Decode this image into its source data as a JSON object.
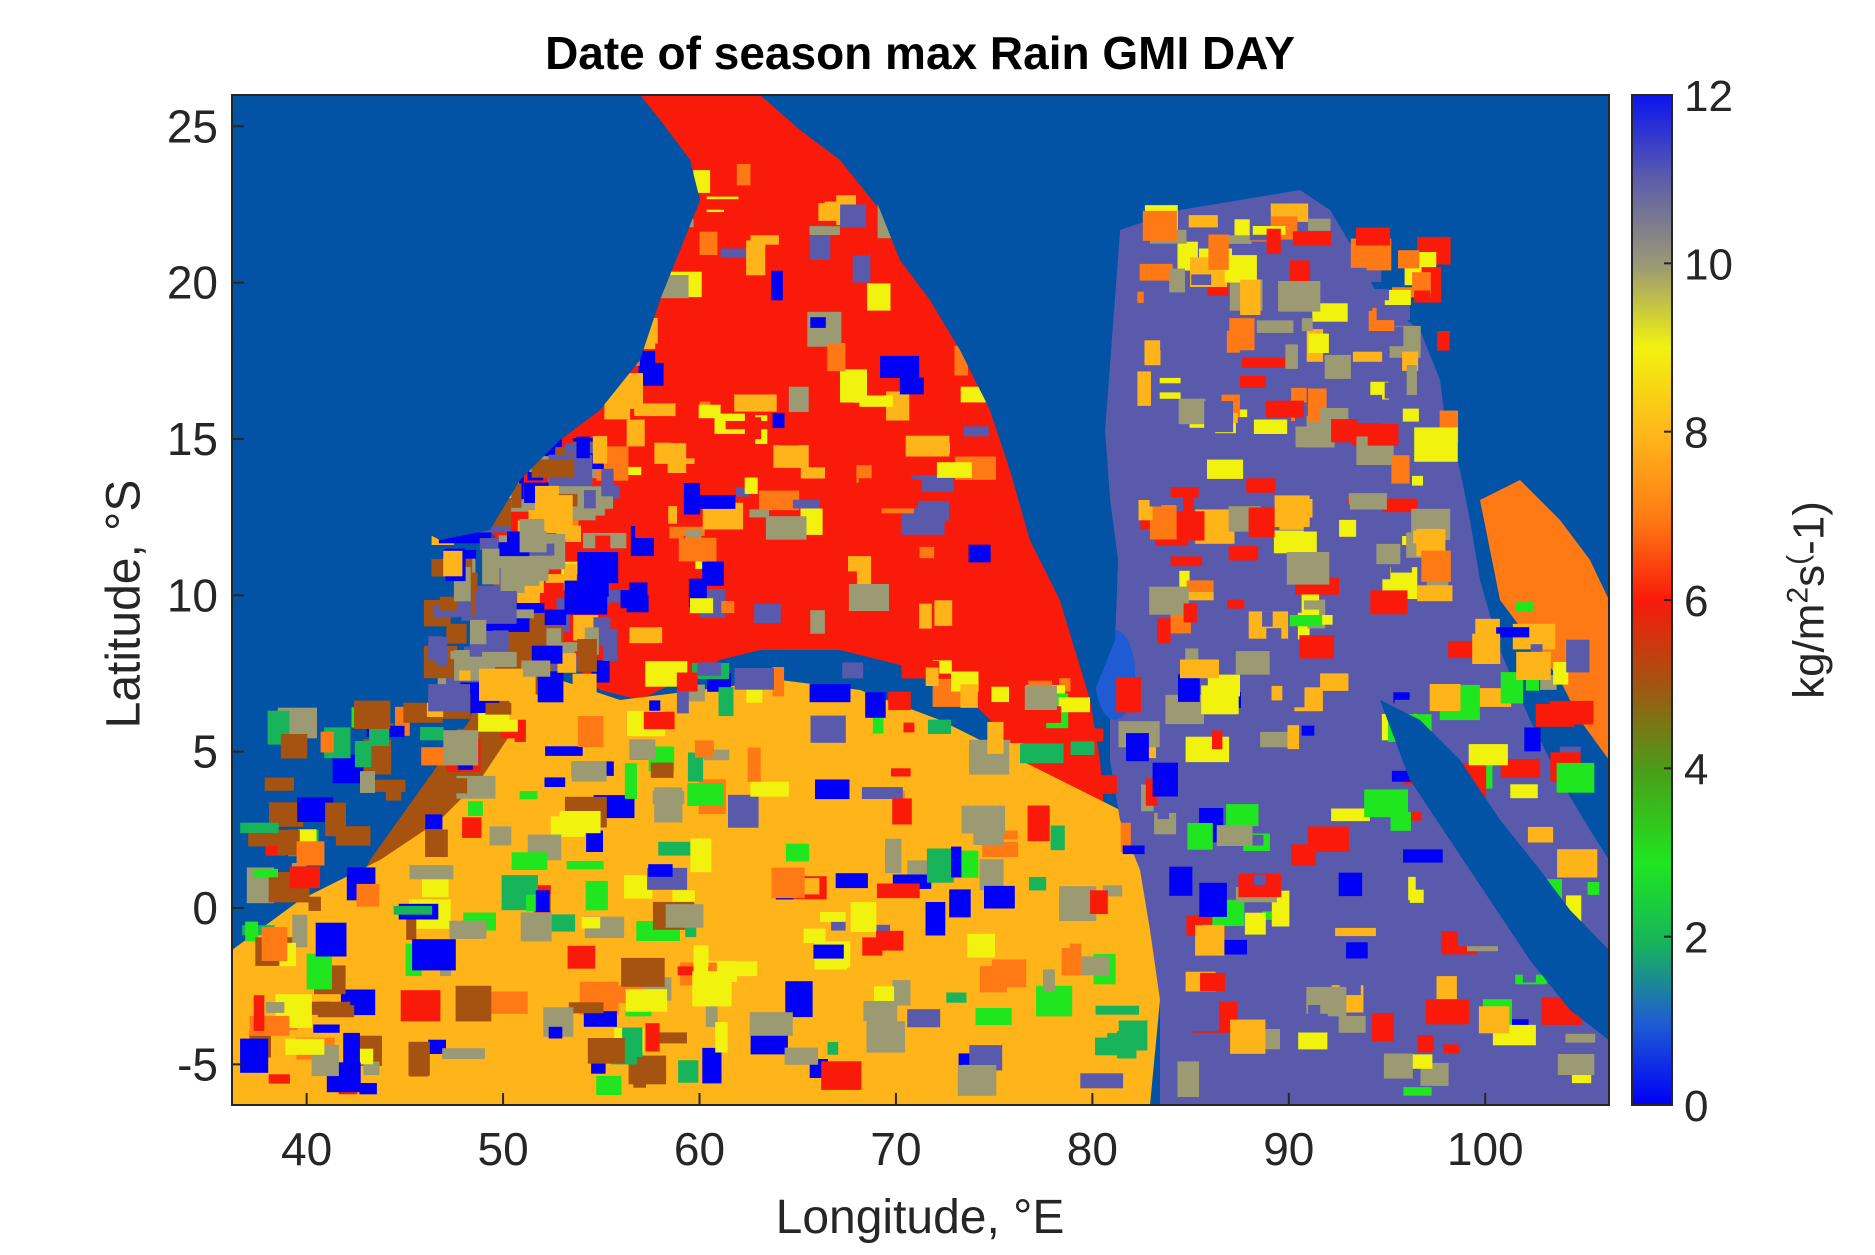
{
  "map": {
    "title": "Date of season max Rain GMI DAY",
    "xlabel": "Longitude, °E",
    "ylabel": "Latitude, °S",
    "colorbar": {
      "label_main": "kg/m",
      "label_sup1": "2",
      "label_mid": "s",
      "label_sup2": "(",
      "label_end": "-1)",
      "ticks": [
        "0",
        "2",
        "4",
        "6",
        "8",
        "10",
        "12"
      ],
      "range": [
        0,
        12
      ]
    },
    "xticks": [
      "40",
      "50",
      "60",
      "70",
      "80",
      "90",
      "100"
    ],
    "yticks": [
      "25",
      "20",
      "15",
      "10",
      "5",
      "0",
      "-5"
    ],
    "xlim": [
      36.2,
      106.3
    ],
    "ylim": [
      -6.3,
      26
    ],
    "colors": {
      "ocean": "#0253A5",
      "c0": "#0000F6",
      "c1": "#1F5BD3",
      "c2": "#17B45B",
      "c3": "#1FE61F",
      "c4": "#4A9E1A",
      "c5": "#A65210",
      "c6": "#F91A0A",
      "c7": "#FF7A14",
      "c8": "#FFB41A",
      "c9": "#F2F20F",
      "c10": "#9C9A73",
      "c11": "#5A5AAD",
      "c12": "#0A14F0"
    }
  }
}
